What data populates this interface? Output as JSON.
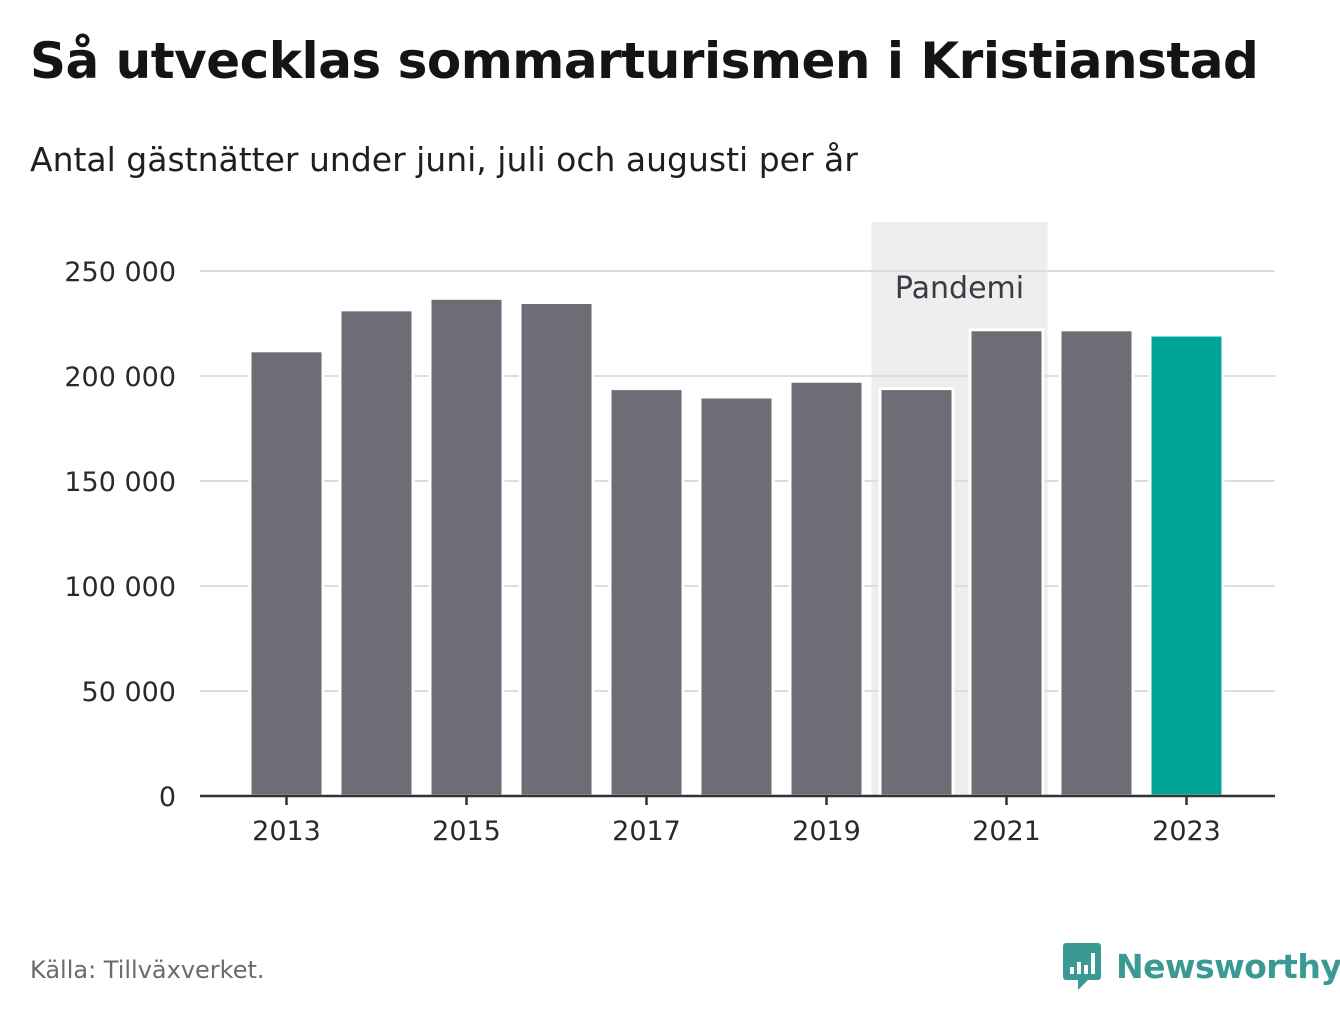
{
  "header": {
    "title": "Så utvecklas sommarturismen i Kristianstad",
    "subtitle": "Antal gästnätter under juni, juli och augusti per år"
  },
  "footer": {
    "source": "Källa: Tillväxverket.",
    "brand": "Newsworthy"
  },
  "colors": {
    "bar": "#6e6d75",
    "highlight": "#00a598",
    "band": "#eeeeee",
    "grid": "#dddddd",
    "axis": "#333333",
    "brand": "#3a9a93"
  },
  "chart_data": {
    "type": "bar",
    "title": "Så utvecklas sommarturismen i Kristianstad",
    "subtitle": "Antal gästnätter under juni, juli och augusti per år",
    "categories": [
      2013,
      2014,
      2015,
      2016,
      2017,
      2018,
      2019,
      2020,
      2021,
      2022,
      2023
    ],
    "values": [
      212000,
      231500,
      237000,
      235000,
      194000,
      190000,
      197500,
      194000,
      222000,
      222000,
      219500
    ],
    "highlight_category": 2023,
    "x_tick_labels": [
      "2013",
      "2015",
      "2017",
      "2019",
      "2021",
      "2023"
    ],
    "y_ticks": [
      0,
      50000,
      100000,
      150000,
      200000,
      250000
    ],
    "y_tick_labels": [
      "0",
      "50 000",
      "100 000",
      "150 000",
      "200 000",
      "250 000"
    ],
    "ylim": [
      0,
      260000
    ],
    "xlabel": "",
    "ylabel": "",
    "grid": true,
    "annotation": {
      "label": "Pandemi",
      "from": 2020,
      "to": 2021
    }
  }
}
